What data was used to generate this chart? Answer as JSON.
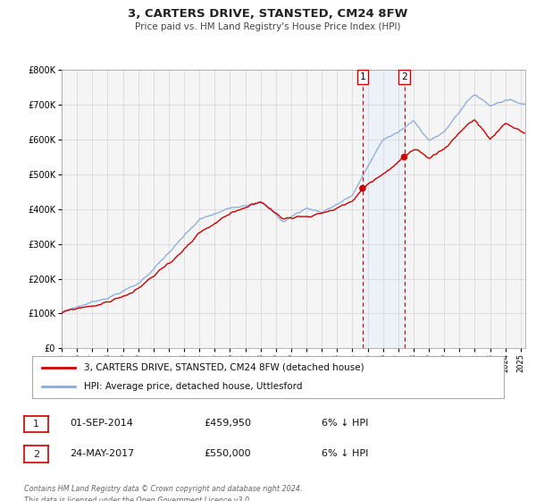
{
  "title": "3, CARTERS DRIVE, STANSTED, CM24 8FW",
  "subtitle": "Price paid vs. HM Land Registry's House Price Index (HPI)",
  "legend_line1": "3, CARTERS DRIVE, STANSTED, CM24 8FW (detached house)",
  "legend_line2": "HPI: Average price, detached house, Uttlesford",
  "transaction1_date": "01-SEP-2014",
  "transaction1_price": "£459,950",
  "transaction1_hpi": "6% ↓ HPI",
  "transaction2_date": "24-MAY-2017",
  "transaction2_price": "£550,000",
  "transaction2_hpi": "6% ↓ HPI",
  "footer": "Contains HM Land Registry data © Crown copyright and database right 2024.\nThis data is licensed under the Open Government Licence v3.0.",
  "hpi_color": "#88aadd",
  "price_color": "#cc0000",
  "marker_color": "#cc0000",
  "vline_color": "#cc0000",
  "shade_color": "#ddeeff",
  "marker1_date_year": 2014.67,
  "marker1_value": 459950,
  "marker2_date_year": 2017.39,
  "marker2_value": 550000,
  "ylim_min": 0,
  "ylim_max": 800000,
  "xlim_start": 1995.0,
  "xlim_end": 2025.3,
  "background_color": "#f5f5f5"
}
